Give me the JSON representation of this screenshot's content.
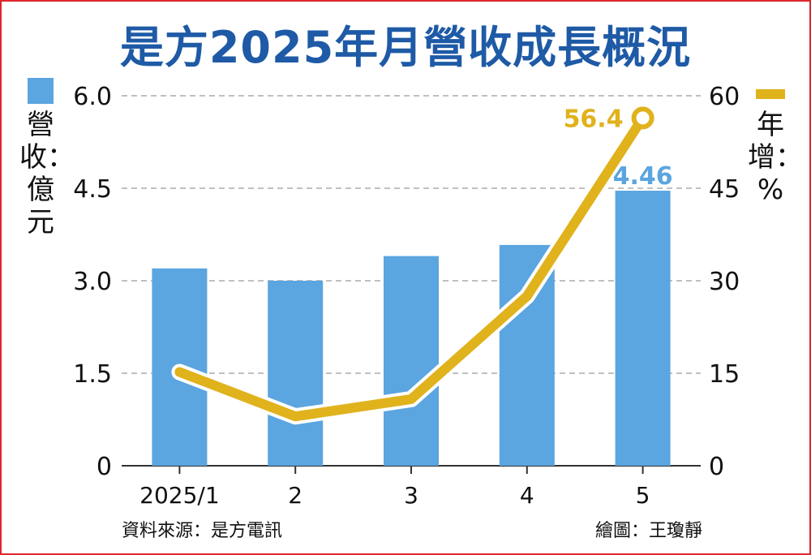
{
  "title": "是方2025年月營收成長概況",
  "source": "資料來源：是方電訊",
  "credit": "繪圖：王瓊靜",
  "colors": {
    "bar": "#5ba5e0",
    "line": "#e0b21c",
    "title": "#1e5aa6",
    "frame": "#e0262c"
  },
  "chart_data": {
    "type": "bar",
    "categories": [
      "2025/1",
      "2",
      "3",
      "4",
      "5"
    ],
    "series": [
      {
        "name": "營收：億元",
        "type": "bar",
        "axis": "left",
        "values": [
          3.2,
          3.0,
          3.4,
          3.58,
          4.46
        ]
      },
      {
        "name": "年增：%",
        "type": "line",
        "axis": "right",
        "values": [
          15.2,
          8.0,
          10.8,
          27.5,
          56.4
        ]
      }
    ],
    "y_left": {
      "label": "營收：億元",
      "ticks": [
        "6.0",
        "4.5",
        "3.0",
        "1.5",
        "0"
      ],
      "ylim": [
        0,
        6.0
      ]
    },
    "y_right": {
      "label": "年增：%",
      "ticks": [
        "60",
        "45",
        "30",
        "15",
        "0"
      ],
      "ylim": [
        0,
        60
      ]
    },
    "data_labels": {
      "bar_last": "4.46",
      "line_last": "56.4"
    },
    "grid": true
  }
}
